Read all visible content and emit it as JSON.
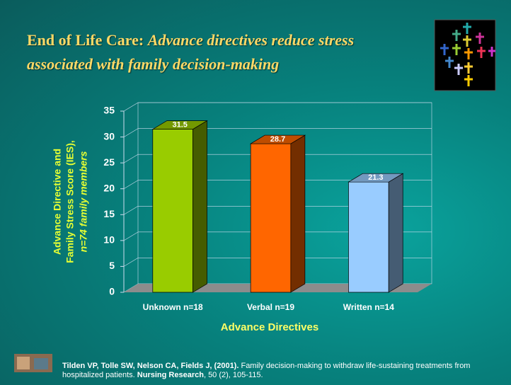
{
  "chart_data": {
    "type": "bar3d",
    "title": "End of Life Care:",
    "subtitle": "Advance directives reduce stress associated with family decision-making",
    "y_label": [
      "Advance Directive and",
      "Family Stress Score (IES),"
    ],
    "y_label_note": "n=74 family members",
    "x_label": "Advance Directives",
    "categories": [
      "Unknown n=18",
      "Verbal n=19",
      "Written n=14"
    ],
    "values": [
      31.5,
      28.7,
      21.3
    ],
    "colors": [
      "#99cc00",
      "#ff6600",
      "#99ccff"
    ],
    "ylim": [
      0,
      35
    ],
    "yticks": [
      0,
      5,
      10,
      15,
      20,
      25,
      30,
      35
    ],
    "grid": true
  },
  "citation": {
    "authors": "Tilden VP, Tolle SW, Nelson CA, Fields J, (2001).",
    "text": "Family decision-making to withdraw life-sustaining treatments from hospitalized patients.",
    "journal": "Nursing Research",
    "details": ", 50 (2), 105-115."
  }
}
